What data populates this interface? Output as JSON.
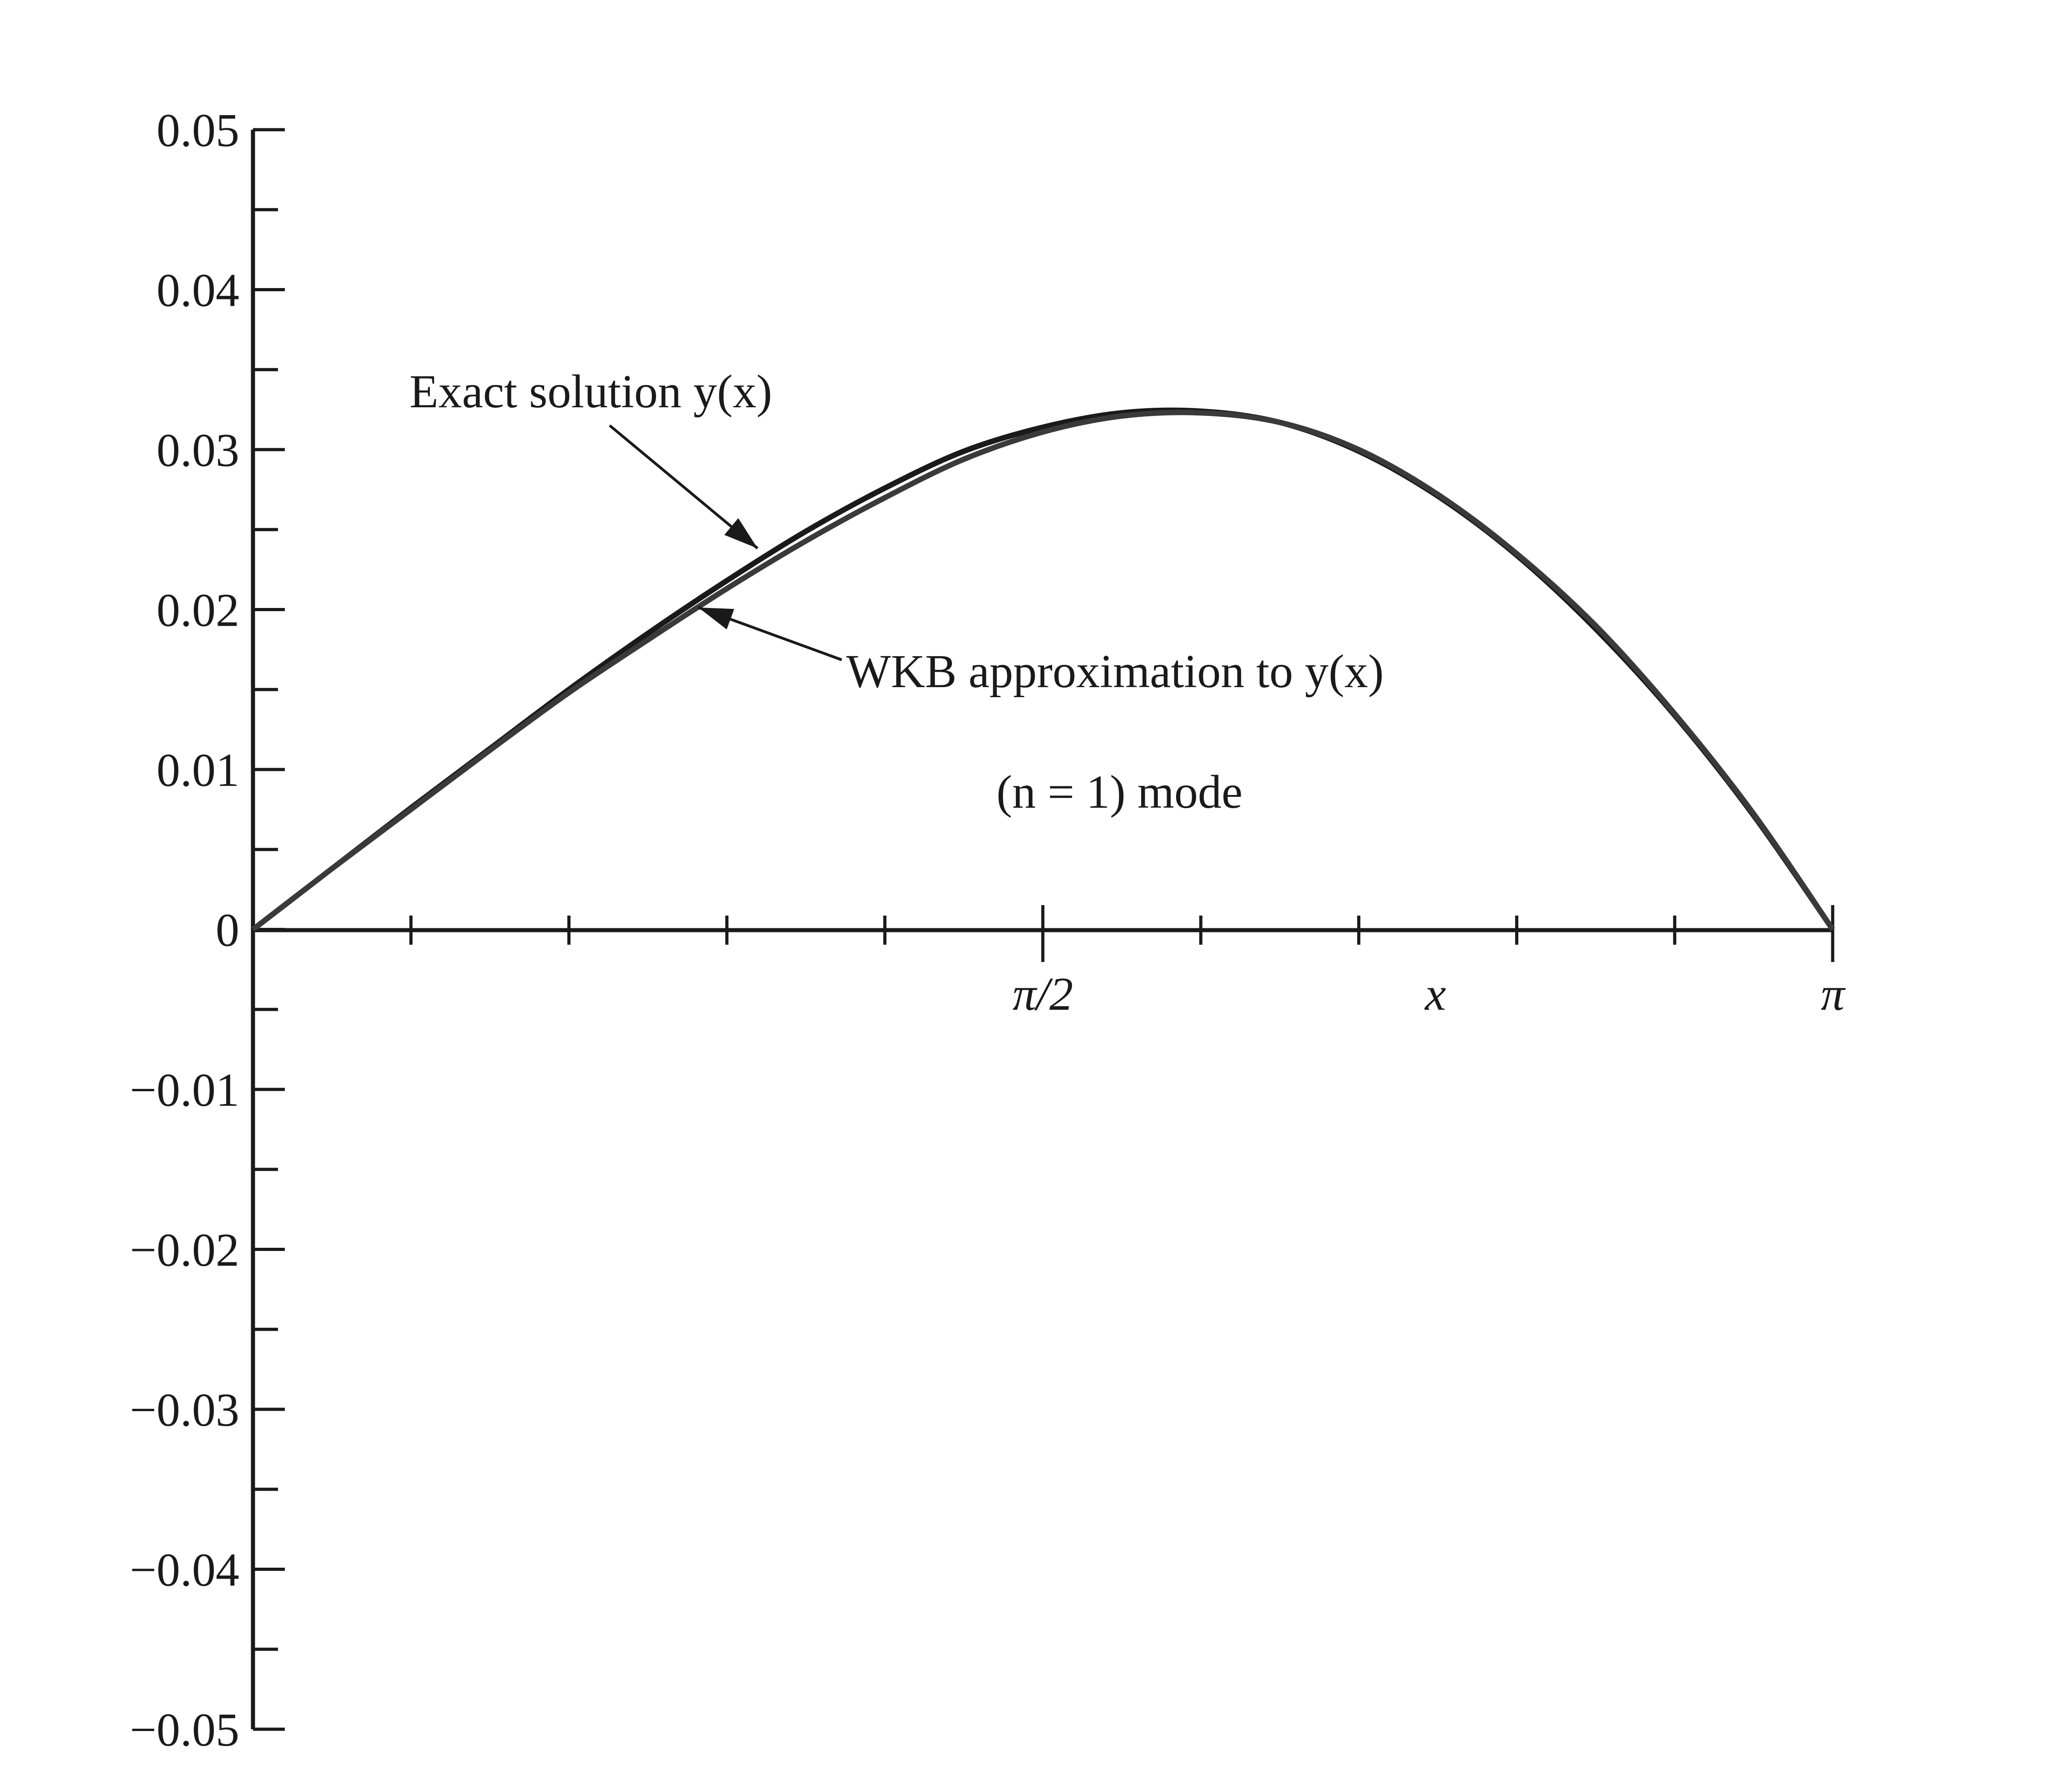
{
  "chart_data": {
    "type": "line",
    "title": "",
    "xlabel": "x",
    "ylabel": "",
    "xlim": [
      0,
      3.14159
    ],
    "ylim": [
      -0.05,
      0.05
    ],
    "grid": false,
    "y_ticks": [
      {
        "value": 0.05,
        "label": "0.05"
      },
      {
        "value": 0.04,
        "label": "0.04"
      },
      {
        "value": 0.03,
        "label": "0.03"
      },
      {
        "value": 0.02,
        "label": "0.02"
      },
      {
        "value": 0.01,
        "label": "0.01"
      },
      {
        "value": 0,
        "label": "0"
      },
      {
        "value": -0.01,
        "label": "−0.01"
      },
      {
        "value": -0.02,
        "label": "−0.02"
      },
      {
        "value": -0.03,
        "label": "−0.03"
      },
      {
        "value": -0.04,
        "label": "−0.04"
      },
      {
        "value": -0.05,
        "label": "−0.05"
      }
    ],
    "x_tick_labels": [
      {
        "value": 1.5708,
        "label": "π/2"
      },
      {
        "value": 3.14159,
        "label": "π"
      }
    ],
    "x_minor_tick_count": 10,
    "series": [
      {
        "name": "Exact solution y(x)",
        "x": [
          0,
          0.157,
          0.314,
          0.471,
          0.628,
          0.785,
          0.942,
          1.1,
          1.257,
          1.414,
          1.571,
          1.728,
          1.885,
          2.042,
          2.199,
          2.356,
          2.513,
          2.67,
          2.827,
          2.985,
          3.1416
        ],
        "y": [
          0,
          0.0038,
          0.0076,
          0.0113,
          0.015,
          0.0185,
          0.0218,
          0.0249,
          0.0276,
          0.0299,
          0.0314,
          0.0323,
          0.0324,
          0.0317,
          0.0299,
          0.0271,
          0.0234,
          0.0188,
          0.0134,
          0.0071,
          0
        ]
      },
      {
        "name": "WKB approximation to y(x)",
        "x": [
          0,
          0.157,
          0.314,
          0.471,
          0.628,
          0.785,
          0.942,
          1.1,
          1.257,
          1.414,
          1.571,
          1.728,
          1.885,
          2.042,
          2.199,
          2.356,
          2.513,
          2.67,
          2.827,
          2.985,
          3.1416
        ],
        "y": [
          0,
          0.0038,
          0.0075,
          0.0112,
          0.0148,
          0.0181,
          0.0213,
          0.0243,
          0.027,
          0.0294,
          0.0311,
          0.0321,
          0.0323,
          0.0317,
          0.03,
          0.0272,
          0.0235,
          0.019,
          0.0135,
          0.0072,
          0
        ]
      }
    ],
    "annotations": {
      "exact_label": "Exact solution y(x)",
      "wkb_label": "WKB approximation to y(x)",
      "mode_label": "(n = 1) mode"
    }
  }
}
